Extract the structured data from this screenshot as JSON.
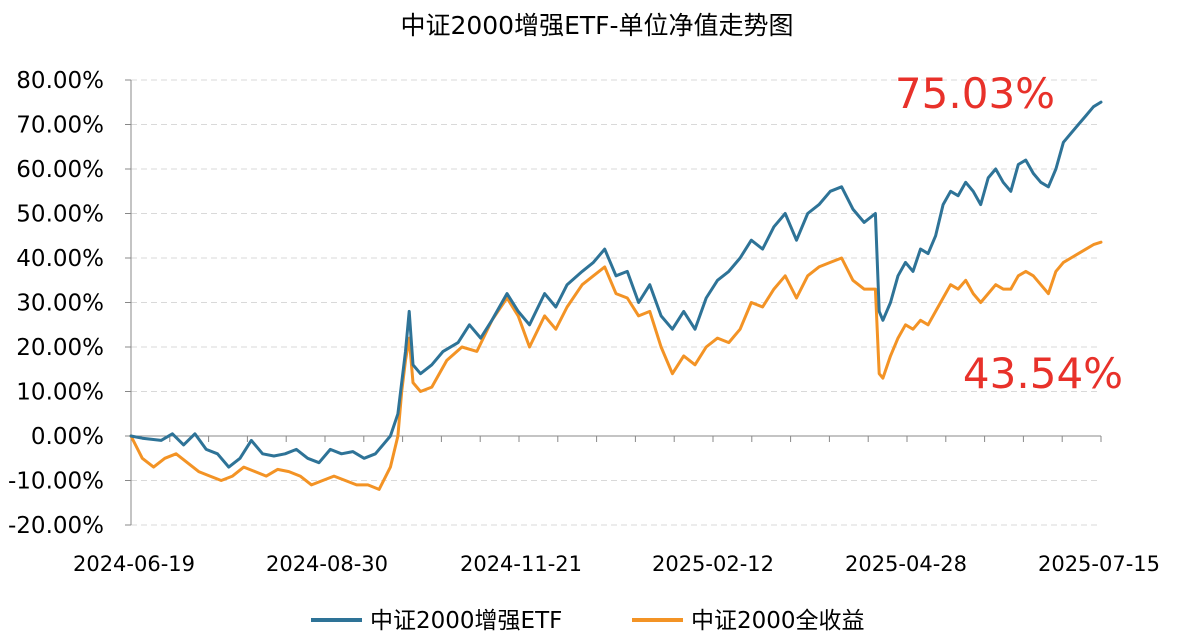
{
  "chart_data": {
    "type": "line",
    "title": "中证2000增强ETF-单位净值走势图",
    "xlabel": "",
    "ylabel": "",
    "ylim": [
      -20,
      80
    ],
    "y_ticks": [
      "80.00%",
      "70.00%",
      "60.00%",
      "50.00%",
      "40.00%",
      "30.00%",
      "20.00%",
      "10.00%",
      "0.00%",
      "-10.00%",
      "-20.00%"
    ],
    "x_tick_labels": [
      "2024-06-19",
      "2024-08-30",
      "2024-11-21",
      "2025-02-12",
      "2025-04-28",
      "2025-07-15"
    ],
    "grid": true,
    "legend_position": "bottom",
    "series": [
      {
        "name": "中证2000增强ETF",
        "color": "#2E7397",
        "end_label": "75.03%",
        "values": [
          [
            0,
            0
          ],
          [
            3,
            -0.5
          ],
          [
            8,
            -1
          ],
          [
            11,
            0.5
          ],
          [
            14,
            -2
          ],
          [
            17,
            0.5
          ],
          [
            20,
            -3
          ],
          [
            23,
            -4
          ],
          [
            26,
            -7
          ],
          [
            29,
            -5
          ],
          [
            32,
            -1
          ],
          [
            35,
            -4
          ],
          [
            38,
            -4.5
          ],
          [
            41,
            -4
          ],
          [
            44,
            -3
          ],
          [
            47,
            -5
          ],
          [
            50,
            -6
          ],
          [
            53,
            -3
          ],
          [
            56,
            -4
          ],
          [
            59,
            -3.5
          ],
          [
            62,
            -5
          ],
          [
            65,
            -4
          ],
          [
            69,
            0
          ],
          [
            71,
            5
          ],
          [
            72,
            12
          ],
          [
            73,
            19
          ],
          [
            74,
            28
          ],
          [
            75,
            16
          ],
          [
            77,
            14
          ],
          [
            80,
            16
          ],
          [
            83,
            19
          ],
          [
            87,
            21
          ],
          [
            90,
            25
          ],
          [
            93,
            22
          ],
          [
            96,
            26
          ],
          [
            100,
            32
          ],
          [
            103,
            28
          ],
          [
            106,
            25
          ],
          [
            110,
            32
          ],
          [
            113,
            29
          ],
          [
            116,
            34
          ],
          [
            120,
            37
          ],
          [
            123,
            39
          ],
          [
            126,
            42
          ],
          [
            129,
            36
          ],
          [
            132,
            37
          ],
          [
            135,
            30
          ],
          [
            138,
            34
          ],
          [
            141,
            27
          ],
          [
            144,
            24
          ],
          [
            147,
            28
          ],
          [
            150,
            24
          ],
          [
            153,
            31
          ],
          [
            156,
            35
          ],
          [
            159,
            37
          ],
          [
            162,
            40
          ],
          [
            165,
            44
          ],
          [
            168,
            42
          ],
          [
            171,
            47
          ],
          [
            174,
            50
          ],
          [
            177,
            44
          ],
          [
            180,
            50
          ],
          [
            183,
            52
          ],
          [
            186,
            55
          ],
          [
            189,
            56
          ],
          [
            192,
            51
          ],
          [
            195,
            48
          ],
          [
            198,
            50
          ],
          [
            199,
            28
          ],
          [
            200,
            26
          ],
          [
            202,
            30
          ],
          [
            204,
            36
          ],
          [
            206,
            39
          ],
          [
            208,
            37
          ],
          [
            210,
            42
          ],
          [
            212,
            41
          ],
          [
            214,
            45
          ],
          [
            216,
            52
          ],
          [
            218,
            55
          ],
          [
            220,
            54
          ],
          [
            222,
            57
          ],
          [
            224,
            55
          ],
          [
            226,
            52
          ],
          [
            228,
            58
          ],
          [
            230,
            60
          ],
          [
            232,
            57
          ],
          [
            234,
            55
          ],
          [
            236,
            61
          ],
          [
            238,
            62
          ],
          [
            240,
            59
          ],
          [
            242,
            57
          ],
          [
            244,
            56
          ],
          [
            246,
            60
          ],
          [
            248,
            66
          ],
          [
            250,
            68
          ],
          [
            252,
            70
          ],
          [
            254,
            72
          ],
          [
            256,
            74
          ],
          [
            258,
            75.03
          ]
        ]
      },
      {
        "name": "中证2000全收益",
        "color": "#F39325",
        "end_label": "43.54%",
        "values": [
          [
            0,
            0
          ],
          [
            3,
            -5
          ],
          [
            6,
            -7
          ],
          [
            9,
            -5
          ],
          [
            12,
            -4
          ],
          [
            15,
            -6
          ],
          [
            18,
            -8
          ],
          [
            21,
            -9
          ],
          [
            24,
            -10
          ],
          [
            27,
            -9
          ],
          [
            30,
            -7
          ],
          [
            33,
            -8
          ],
          [
            36,
            -9
          ],
          [
            39,
            -7.5
          ],
          [
            42,
            -8
          ],
          [
            45,
            -9
          ],
          [
            48,
            -11
          ],
          [
            51,
            -10
          ],
          [
            54,
            -9
          ],
          [
            57,
            -10
          ],
          [
            60,
            -11
          ],
          [
            63,
            -11
          ],
          [
            66,
            -12
          ],
          [
            69,
            -7
          ],
          [
            71,
            0
          ],
          [
            72,
            10
          ],
          [
            73,
            17
          ],
          [
            74,
            22
          ],
          [
            75,
            12
          ],
          [
            77,
            10
          ],
          [
            80,
            11
          ],
          [
            84,
            17
          ],
          [
            88,
            20
          ],
          [
            92,
            19
          ],
          [
            96,
            26
          ],
          [
            100,
            31
          ],
          [
            103,
            27
          ],
          [
            106,
            20
          ],
          [
            110,
            27
          ],
          [
            113,
            24
          ],
          [
            116,
            29
          ],
          [
            120,
            34
          ],
          [
            123,
            36
          ],
          [
            126,
            38
          ],
          [
            129,
            32
          ],
          [
            132,
            31
          ],
          [
            135,
            27
          ],
          [
            138,
            28
          ],
          [
            141,
            20
          ],
          [
            144,
            14
          ],
          [
            147,
            18
          ],
          [
            150,
            16
          ],
          [
            153,
            20
          ],
          [
            156,
            22
          ],
          [
            159,
            21
          ],
          [
            162,
            24
          ],
          [
            165,
            30
          ],
          [
            168,
            29
          ],
          [
            171,
            33
          ],
          [
            174,
            36
          ],
          [
            177,
            31
          ],
          [
            180,
            36
          ],
          [
            183,
            38
          ],
          [
            186,
            39
          ],
          [
            189,
            40
          ],
          [
            192,
            35
          ],
          [
            195,
            33
          ],
          [
            198,
            33
          ],
          [
            199,
            14
          ],
          [
            200,
            13
          ],
          [
            202,
            18
          ],
          [
            204,
            22
          ],
          [
            206,
            25
          ],
          [
            208,
            24
          ],
          [
            210,
            26
          ],
          [
            212,
            25
          ],
          [
            214,
            28
          ],
          [
            216,
            31
          ],
          [
            218,
            34
          ],
          [
            220,
            33
          ],
          [
            222,
            35
          ],
          [
            224,
            32
          ],
          [
            226,
            30
          ],
          [
            228,
            32
          ],
          [
            230,
            34
          ],
          [
            232,
            33
          ],
          [
            234,
            33
          ],
          [
            236,
            36
          ],
          [
            238,
            37
          ],
          [
            240,
            36
          ],
          [
            242,
            34
          ],
          [
            244,
            32
          ],
          [
            246,
            37
          ],
          [
            248,
            39
          ],
          [
            250,
            40
          ],
          [
            252,
            41
          ],
          [
            254,
            42
          ],
          [
            256,
            43
          ],
          [
            258,
            43.54
          ]
        ]
      }
    ]
  }
}
